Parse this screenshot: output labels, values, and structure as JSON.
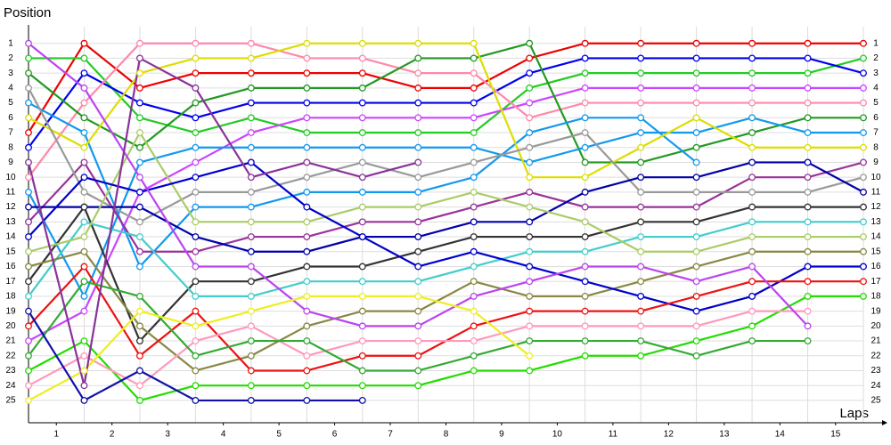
{
  "chart_data": {
    "type": "line",
    "y_axis_label": "Position",
    "x_axis_label": "Laps",
    "x": [
      0,
      1,
      2,
      3,
      4,
      5,
      6,
      7,
      8,
      9,
      10,
      11,
      12,
      13,
      14,
      15
    ],
    "xlim": [
      0,
      15
    ],
    "xticks": [
      {
        "value": 0.5,
        "label": "1"
      },
      {
        "value": 1.5,
        "label": "2"
      },
      {
        "value": 2.5,
        "label": "3"
      },
      {
        "value": 3.5,
        "label": "4"
      },
      {
        "value": 4.5,
        "label": "5"
      },
      {
        "value": 5.5,
        "label": "6"
      },
      {
        "value": 6.5,
        "label": "7"
      },
      {
        "value": 7.5,
        "label": "8"
      },
      {
        "value": 8.5,
        "label": "9"
      },
      {
        "value": 9.5,
        "label": "10"
      },
      {
        "value": 10.5,
        "label": "11"
      },
      {
        "value": 11.5,
        "label": "12"
      },
      {
        "value": 12.5,
        "label": "13"
      },
      {
        "value": 13.5,
        "label": "14"
      },
      {
        "value": 14.5,
        "label": "15"
      }
    ],
    "ylim": [
      0,
      26.5
    ],
    "y_inverted": true,
    "yticks": [
      1,
      2,
      3,
      4,
      5,
      6,
      7,
      8,
      9,
      10,
      11,
      12,
      13,
      14,
      15,
      16,
      17,
      18,
      19,
      20,
      21,
      22,
      23,
      24,
      25
    ],
    "grid": true,
    "series": [
      {
        "color": "#ee0000",
        "values": [
          7,
          1,
          4,
          3,
          3,
          3,
          3,
          4,
          4,
          2,
          1,
          1,
          1,
          1,
          1,
          1
        ]
      },
      {
        "color": "#22cc22",
        "values": [
          2,
          2,
          6,
          7,
          6,
          7,
          7,
          7,
          7,
          4,
          3,
          3,
          3,
          3,
          3,
          2
        ]
      },
      {
        "color": "#0000ee",
        "values": [
          8,
          3,
          5,
          6,
          5,
          5,
          5,
          5,
          5,
          3,
          2,
          2,
          2,
          2,
          2,
          3
        ]
      },
      {
        "color": "#cc44ff",
        "values": [
          21,
          19,
          11,
          9,
          7,
          6,
          6,
          6,
          6,
          5,
          4,
          4,
          4,
          4,
          4,
          4
        ]
      },
      {
        "color": "#ff88aa",
        "values": [
          10,
          5,
          1,
          1,
          1,
          2,
          2,
          3,
          3,
          6,
          5,
          5,
          5,
          5,
          5,
          5
        ]
      },
      {
        "color": "#229922",
        "values": [
          3,
          6,
          8,
          5,
          4,
          4,
          4,
          2,
          2,
          1,
          9,
          9,
          8,
          7,
          6,
          6
        ]
      },
      {
        "color": "#1199ee",
        "values": [
          11,
          18,
          9,
          8,
          8,
          8,
          8,
          8,
          8,
          9,
          8,
          7,
          7,
          6,
          7,
          7
        ]
      },
      {
        "color": "#1199ee",
        "values": [
          5,
          7,
          16,
          12,
          12,
          11,
          11,
          11,
          10,
          7,
          6,
          6,
          9,
          null,
          null,
          null
        ]
      },
      {
        "color": "#dddd00",
        "values": [
          6,
          8,
          3,
          2,
          2,
          1,
          1,
          1,
          1,
          10,
          10,
          8,
          6,
          8,
          8,
          8
        ]
      },
      {
        "color": "#993399",
        "values": [
          13,
          9,
          15,
          15,
          14,
          14,
          13,
          13,
          12,
          11,
          12,
          12,
          12,
          10,
          10,
          9
        ]
      },
      {
        "color": "#999999",
        "values": [
          4,
          11,
          13,
          11,
          11,
          10,
          9,
          10,
          9,
          8,
          7,
          11,
          11,
          11,
          11,
          10
        ]
      },
      {
        "color": "#0000aa",
        "values": [
          12,
          12,
          12,
          14,
          15,
          15,
          14,
          14,
          13,
          13,
          11,
          10,
          10,
          9,
          9,
          11
        ]
      },
      {
        "color": "#333333",
        "values": [
          17,
          12,
          21,
          17,
          17,
          16,
          16,
          15,
          14,
          14,
          14,
          13,
          13,
          12,
          12,
          12
        ]
      },
      {
        "color": "#44cccc",
        "values": [
          18,
          13,
          14,
          18,
          18,
          17,
          17,
          17,
          16,
          15,
          15,
          14,
          14,
          13,
          13,
          13
        ]
      },
      {
        "color": "#aacc66",
        "values": [
          15,
          14,
          7,
          13,
          13,
          13,
          12,
          12,
          11,
          12,
          13,
          15,
          15,
          14,
          14,
          14
        ]
      },
      {
        "color": "#888844",
        "values": [
          16,
          15,
          20,
          23,
          22,
          20,
          19,
          19,
          17,
          18,
          18,
          17,
          16,
          15,
          15,
          15
        ]
      },
      {
        "color": "#0000cc",
        "values": [
          14,
          10,
          11,
          10,
          9,
          12,
          14,
          16,
          15,
          16,
          17,
          18,
          19,
          18,
          16,
          16
        ]
      },
      {
        "color": "#ee1111",
        "values": [
          20,
          16,
          22,
          19,
          23,
          23,
          22,
          22,
          20,
          19,
          19,
          19,
          18,
          17,
          17,
          17
        ]
      },
      {
        "color": "#22dd00",
        "values": [
          23,
          21,
          25,
          24,
          24,
          24,
          24,
          24,
          23,
          23,
          22,
          22,
          21,
          20,
          18,
          18
        ]
      },
      {
        "color": "#ff99bb",
        "values": [
          24,
          22,
          24,
          21,
          20,
          22,
          21,
          21,
          21,
          20,
          20,
          20,
          20,
          19,
          19,
          null
        ]
      },
      {
        "color": "#bb44ee",
        "values": [
          1,
          4,
          10,
          16,
          16,
          19,
          20,
          20,
          18,
          17,
          16,
          16,
          17,
          16,
          20,
          null
        ]
      },
      {
        "color": "#33aa33",
        "values": [
          22,
          17,
          18,
          22,
          21,
          21,
          23,
          23,
          22,
          21,
          21,
          21,
          22,
          21,
          21,
          null
        ]
      },
      {
        "color": "#eeee22",
        "values": [
          25,
          23,
          19,
          20,
          19,
          18,
          18,
          18,
          19,
          22,
          null,
          null,
          null,
          null,
          null,
          null
        ]
      },
      {
        "color": "#1111aa",
        "values": [
          19,
          25,
          23,
          25,
          25,
          25,
          25,
          null,
          null,
          null,
          null,
          null,
          null,
          null,
          null,
          null
        ]
      },
      {
        "color": "#883399",
        "values": [
          9,
          24,
          2,
          4,
          10,
          9,
          10,
          9,
          null,
          null,
          null,
          null,
          null,
          null,
          null,
          null
        ]
      }
    ]
  }
}
